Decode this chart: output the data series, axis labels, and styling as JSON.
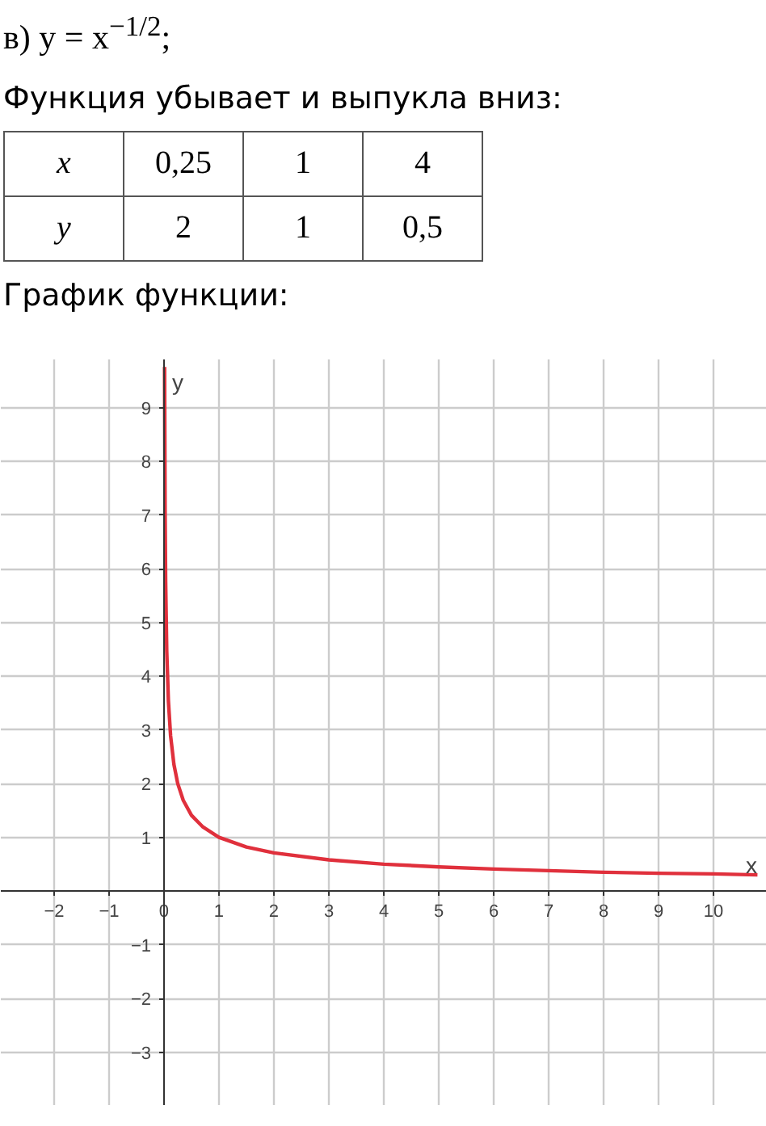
{
  "chart_data": {
    "type": "line",
    "title": "в) y = x$^{−1/2}$;",
    "subtitle": "Функция убывает и выпукла вниз:",
    "annotations": [
      "x",
      "0,25",
      "1",
      "4",
      "y",
      "2",
      "1",
      "0,5",
      "График функции:"
    ],
    "xlabel": "x",
    "ylabel": "y",
    "x": [
      0.0105,
      0.02,
      0.03,
      0.05,
      0.08,
      0.12,
      0.18,
      0.25,
      0.35,
      0.5,
      0.7,
      1,
      1.5,
      2,
      3,
      4,
      5,
      6,
      7,
      8,
      9,
      10,
      10.8
    ],
    "series": [
      {
        "color": "#e0303c",
        "values": [
          9.76,
          7.07,
          5.77,
          4.47,
          3.54,
          2.89,
          2.36,
          2,
          1.69,
          1.41,
          1.2,
          1,
          0.82,
          0.71,
          0.58,
          0.5,
          0.45,
          0.41,
          0.38,
          0.35,
          0.33,
          0.32,
          0.3
        ]
      }
    ],
    "xlim": [
      -2.97,
      10.97
    ],
    "ylim": [
      -4.0,
      9.9
    ],
    "xticks": [
      {
        "value": -2,
        "label": "−2"
      },
      {
        "value": -1,
        "label": "−1"
      },
      0,
      1,
      2,
      3,
      4,
      5,
      6,
      7,
      8,
      9,
      10
    ],
    "yticks": [
      {
        "value": -3,
        "label": "−3"
      },
      {
        "value": -2,
        "label": "−2"
      },
      {
        "value": -1,
        "label": "−1"
      },
      1,
      2,
      3,
      4,
      5,
      6,
      7,
      8,
      9
    ],
    "grid": true,
    "marker": "none",
    "line_style": "solid"
  }
}
